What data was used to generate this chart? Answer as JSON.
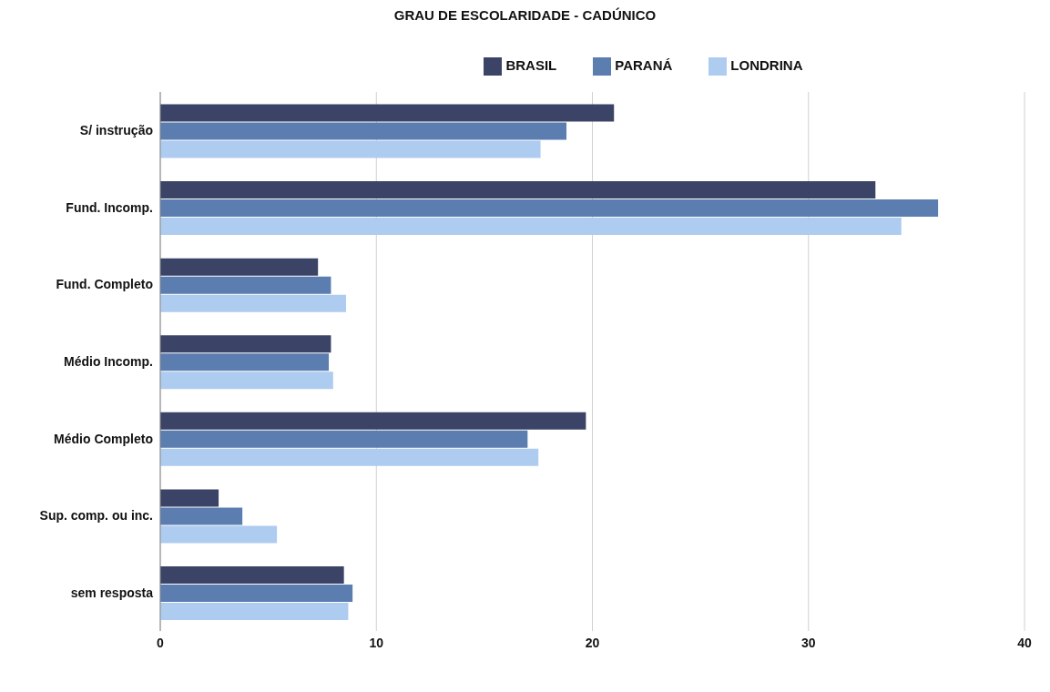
{
  "chart_data": {
    "type": "bar",
    "orientation": "horizontal",
    "title": "GRAU DE ESCOLARIDADE - CADÚNICO",
    "categories": [
      "S/ instrução",
      "Fund. Incomp.",
      "Fund. Completo",
      "Médio Incomp.",
      "Médio Completo",
      "Sup. comp. ou inc.",
      "sem resposta"
    ],
    "series": [
      {
        "name": "BRASIL",
        "color": "#3b4466",
        "values": [
          21.0,
          33.1,
          7.3,
          7.9,
          19.7,
          2.7,
          8.5
        ]
      },
      {
        "name": "PARANÁ",
        "color": "#5b7db0",
        "values": [
          18.8,
          36.0,
          7.9,
          7.8,
          17.0,
          3.8,
          8.9
        ]
      },
      {
        "name": "LONDRINA",
        "color": "#aecbf0",
        "values": [
          17.6,
          34.3,
          8.6,
          8.0,
          17.5,
          5.4,
          8.7
        ]
      }
    ],
    "xlim": [
      0,
      40
    ],
    "xticks": [
      0,
      10,
      20,
      30,
      40
    ],
    "grid": "x",
    "legend": "top"
  }
}
